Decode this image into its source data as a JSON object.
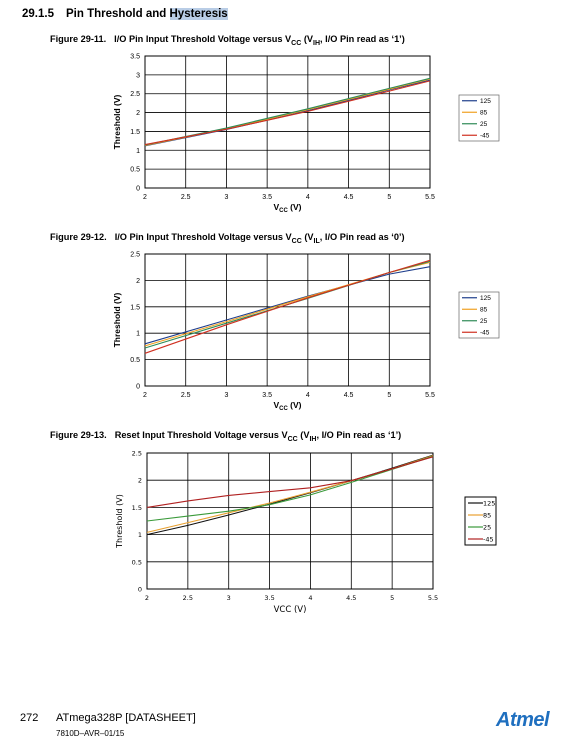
{
  "section": {
    "number": "29.1.5",
    "title_plain": "Pin Threshold and ",
    "title_highlight": "Hysteresis"
  },
  "figures": [
    {
      "number": "Figure 29-11.",
      "caption_pre": "I/O Pin Input Threshold Voltage versus V",
      "caption_sub": "CC",
      "caption_mid": " (V",
      "caption_sub2": "IH",
      "caption_post": ", I/O Pin read as ‘1’)"
    },
    {
      "number": "Figure 29-12.",
      "caption_pre": "I/O Pin Input Threshold Voltage versus V",
      "caption_sub": "CC",
      "caption_mid": " (V",
      "caption_sub2": "IL",
      "caption_post": ", I/O Pin read as ‘0’)"
    },
    {
      "number": "Figure 29-13.",
      "caption_pre": "Reset Input Threshold Voltage versus V",
      "caption_sub": "CC",
      "caption_mid": " (V",
      "caption_sub2": "IH",
      "caption_post": ", I/O Pin read as ‘1’)"
    }
  ],
  "chart_data": [
    {
      "type": "line",
      "title": "",
      "xlabel": "VCC (V)",
      "xlabel_main": "V",
      "xlabel_sub": "CC",
      "xlabel_unit": " (V)",
      "ylabel": "Threshold (V)",
      "xlim": [
        2,
        5.5
      ],
      "ylim": [
        0,
        3.5
      ],
      "xticks": [
        2,
        2.5,
        3,
        3.5,
        4,
        4.5,
        5,
        5.5
      ],
      "xtick_labels": [
        "2",
        "2.5",
        "3",
        "3.5",
        "4",
        "4.5",
        "5",
        "5.5"
      ],
      "yticks": [
        0,
        0.5,
        1,
        1.5,
        2,
        2.5,
        3,
        3.5
      ],
      "ytick_labels": [
        "0",
        "0.5",
        "1",
        "1.5",
        "2",
        "2.5",
        "3",
        "3.5"
      ],
      "grid": true,
      "legend": "right",
      "series": [
        {
          "name": "125",
          "color": "#1f3e8c",
          "x": [
            2,
            3,
            4,
            5,
            5.5
          ],
          "y": [
            1.12,
            1.55,
            2.05,
            2.6,
            2.86
          ]
        },
        {
          "name": "85",
          "color": "#f0a020",
          "x": [
            2,
            3,
            4,
            5,
            5.5
          ],
          "y": [
            1.13,
            1.57,
            2.08,
            2.62,
            2.89
          ]
        },
        {
          "name": "25",
          "color": "#2e8b57",
          "x": [
            2,
            3,
            4,
            5,
            5.5
          ],
          "y": [
            1.14,
            1.59,
            2.1,
            2.64,
            2.91
          ]
        },
        {
          "name": "-45",
          "color": "#d03020",
          "x": [
            2,
            3,
            4,
            5,
            5.5
          ],
          "y": [
            1.15,
            1.56,
            2.03,
            2.57,
            2.84
          ]
        }
      ]
    },
    {
      "type": "line",
      "title": "",
      "xlabel": "VCC (V)",
      "xlabel_main": "V",
      "xlabel_sub": "CC",
      "xlabel_unit": " (V)",
      "ylabel": "Threshold (V)",
      "xlim": [
        2,
        5.5
      ],
      "ylim": [
        0,
        2.5
      ],
      "xticks": [
        2,
        2.5,
        3,
        3.5,
        4,
        4.5,
        5,
        5.5
      ],
      "xtick_labels": [
        "2",
        "2.5",
        "3",
        "3.5",
        "4",
        "4.5",
        "5",
        "5.5"
      ],
      "yticks": [
        0,
        0.5,
        1,
        1.5,
        2,
        2.5
      ],
      "ytick_labels": [
        "0",
        "0.5",
        "1",
        "1.5",
        "2",
        "2.5"
      ],
      "grid": true,
      "legend": "right",
      "series": [
        {
          "name": "125",
          "color": "#1f3e8c",
          "x": [
            2,
            3,
            4,
            5,
            5.5
          ],
          "y": [
            0.8,
            1.25,
            1.7,
            2.12,
            2.26
          ]
        },
        {
          "name": "85",
          "color": "#f0a020",
          "x": [
            2,
            3,
            4,
            5,
            5.5
          ],
          "y": [
            0.76,
            1.22,
            1.69,
            2.15,
            2.34
          ]
        },
        {
          "name": "25",
          "color": "#2e8b57",
          "x": [
            2,
            3,
            4,
            5,
            5.5
          ],
          "y": [
            0.72,
            1.19,
            1.66,
            2.15,
            2.36
          ]
        },
        {
          "name": "-45",
          "color": "#d03020",
          "x": [
            2,
            3,
            4,
            5,
            5.5
          ],
          "y": [
            0.62,
            1.16,
            1.67,
            2.15,
            2.38
          ]
        }
      ]
    },
    {
      "type": "line",
      "title": "",
      "xlabel": "VCC (V)",
      "ylabel": "Threshold (V)",
      "xlim": [
        2,
        5.5
      ],
      "ylim": [
        0,
        2.5
      ],
      "xticks": [
        2,
        2.5,
        3,
        3.5,
        4,
        4.5,
        5,
        5.5
      ],
      "xtick_labels": [
        "2",
        "2.5",
        "3",
        "3.5",
        "4",
        "4.5",
        "5",
        "5.5"
      ],
      "yticks": [
        0,
        0.5,
        1,
        1.5,
        2,
        2.5
      ],
      "ytick_labels": [
        "0",
        "0.5",
        "1",
        "1.5",
        "2",
        "2.5"
      ],
      "grid": true,
      "legend": "right",
      "series": [
        {
          "name": "125",
          "color": "#111111",
          "x": [
            2,
            2.5,
            3,
            3.5,
            4,
            4.5,
            5,
            5.5
          ],
          "y": [
            1.0,
            1.17,
            1.36,
            1.56,
            1.77,
            1.99,
            2.22,
            2.46
          ]
        },
        {
          "name": "85",
          "color": "#e8a030",
          "x": [
            2,
            2.5,
            3,
            3.5,
            4,
            4.5,
            5,
            5.5
          ],
          "y": [
            1.04,
            1.22,
            1.4,
            1.58,
            1.78,
            1.99,
            2.21,
            2.45
          ]
        },
        {
          "name": "25",
          "color": "#3a9a3a",
          "x": [
            2,
            2.5,
            3,
            3.5,
            4,
            4.5,
            5,
            5.5
          ],
          "y": [
            1.25,
            1.34,
            1.43,
            1.55,
            1.73,
            1.96,
            2.2,
            2.44
          ]
        },
        {
          "name": "-45",
          "color": "#b02020",
          "x": [
            2,
            2.5,
            3,
            3.5,
            4,
            4.5,
            5,
            5.5
          ],
          "y": [
            1.5,
            1.62,
            1.72,
            1.79,
            1.86,
            1.99,
            2.21,
            2.43
          ]
        }
      ]
    }
  ],
  "footer": {
    "page": "272",
    "doc": "ATmega328P [DATASHEET]",
    "code": "7810D–AVR–01/15",
    "logo": "Atmel"
  }
}
